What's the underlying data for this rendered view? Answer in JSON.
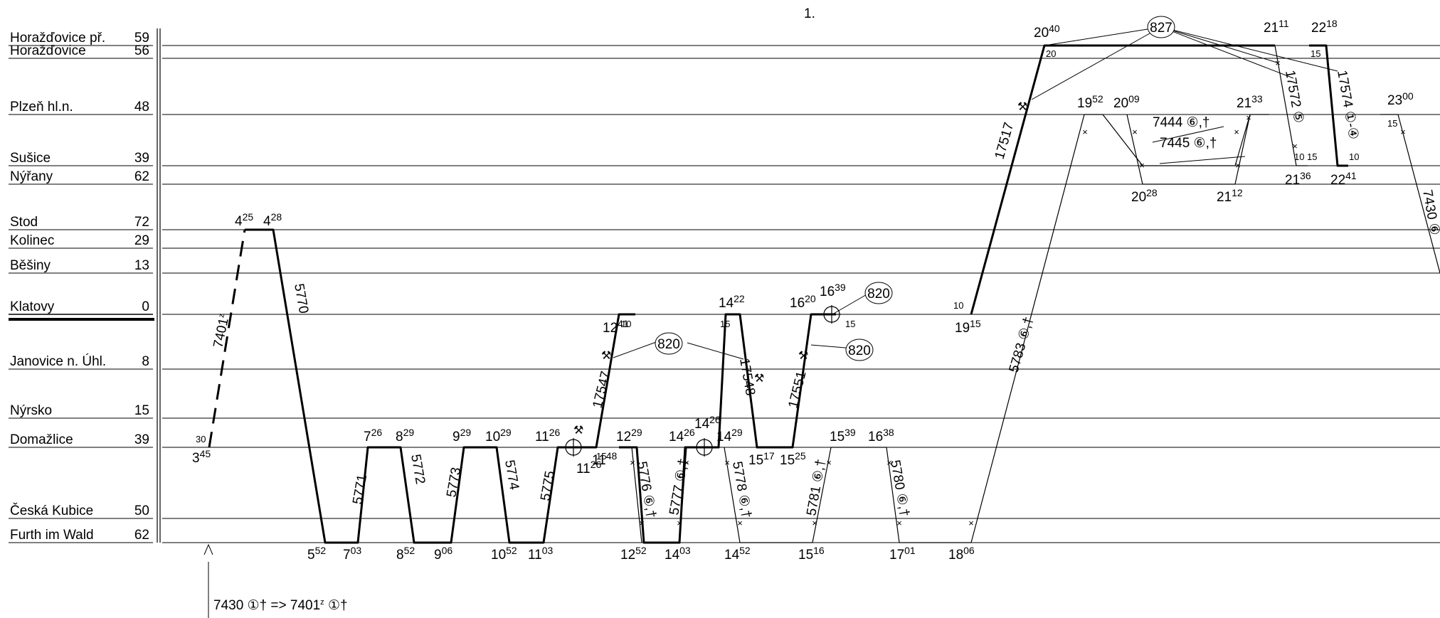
{
  "page_number": "1.",
  "stations": [
    {
      "name": "Horažďovice př.",
      "km": "59"
    },
    {
      "name": "Horažďovice",
      "km": "56"
    },
    {
      "name": "Plzeň hl.n.",
      "km": "48"
    },
    {
      "name": "Sušice",
      "km": "39"
    },
    {
      "name": "Nýřany",
      "km": "62"
    },
    {
      "name": "Stod",
      "km": "72"
    },
    {
      "name": "Kolinec",
      "km": "29"
    },
    {
      "name": "Běšiny",
      "km": "13"
    },
    {
      "name": "Klatovy",
      "km": "0"
    },
    {
      "name": "Janovice n. Úhl.",
      "km": "8"
    },
    {
      "name": "Nýrsko",
      "km": "15"
    },
    {
      "name": "Domažlice",
      "km": "39"
    },
    {
      "name": "Česká Kubice",
      "km": "50"
    },
    {
      "name": "Furth im Wald",
      "km": "62"
    }
  ],
  "times": [
    {
      "h": "3",
      "m": "45"
    },
    {
      "h": "4",
      "m": "25"
    },
    {
      "h": "4",
      "m": "28"
    },
    {
      "h": "5",
      "m": "52"
    },
    {
      "h": "7",
      "m": "03"
    },
    {
      "h": "7",
      "m": "26"
    },
    {
      "h": "8",
      "m": "29"
    },
    {
      "h": "8",
      "m": "52"
    },
    {
      "h": "9",
      "m": "06"
    },
    {
      "h": "9",
      "m": "29"
    },
    {
      "h": "10",
      "m": "29"
    },
    {
      "h": "10",
      "m": "52"
    },
    {
      "h": "11",
      "m": "03"
    },
    {
      "h": "11",
      "m": "26"
    },
    {
      "h": "11",
      "m": "26"
    },
    {
      "h": "11",
      "m": "48"
    },
    {
      "h": "12",
      "m": "41"
    },
    {
      "h": "12",
      "m": "29"
    },
    {
      "h": "12",
      "m": "52"
    },
    {
      "h": "14",
      "m": "03"
    },
    {
      "h": "14",
      "m": "26"
    },
    {
      "h": "14",
      "m": "26"
    },
    {
      "h": "14",
      "m": "29"
    },
    {
      "h": "14",
      "m": "22"
    },
    {
      "h": "14",
      "m": "52"
    },
    {
      "h": "15",
      "m": "17"
    },
    {
      "h": "15",
      "m": "25"
    },
    {
      "h": "15",
      "m": "16"
    },
    {
      "h": "15",
      "m": "39"
    },
    {
      "h": "16",
      "m": "38"
    },
    {
      "h": "16",
      "m": "20"
    },
    {
      "h": "16",
      "m": "39"
    },
    {
      "h": "17",
      "m": "01"
    },
    {
      "h": "18",
      "m": "06"
    },
    {
      "h": "19",
      "m": "15"
    },
    {
      "h": "20",
      "m": "40"
    },
    {
      "h": "19",
      "m": "52"
    },
    {
      "h": "20",
      "m": "09"
    },
    {
      "h": "20",
      "m": "28"
    },
    {
      "h": "21",
      "m": "12"
    },
    {
      "h": "21",
      "m": "33"
    },
    {
      "h": "21",
      "m": "11"
    },
    {
      "h": "21",
      "m": "36"
    },
    {
      "h": "22",
      "m": "18"
    },
    {
      "h": "22",
      "m": "41"
    },
    {
      "h": "23",
      "m": "00"
    }
  ],
  "minor_labels": [
    "30",
    "10",
    "15",
    "15",
    "10",
    "20",
    "15",
    "15",
    "15",
    "10",
    "10",
    "15"
  ],
  "trains": [
    {
      "number": "7401",
      "suffix": "z"
    },
    {
      "number": "5770"
    },
    {
      "number": "5771"
    },
    {
      "number": "5772"
    },
    {
      "number": "5773"
    },
    {
      "number": "5774"
    },
    {
      "number": "5775"
    },
    {
      "number": "17547"
    },
    {
      "number": "5776 ⑥,†"
    },
    {
      "number": "5777 ⑥,†"
    },
    {
      "number": "17548"
    },
    {
      "number": "5778 ⑥,†"
    },
    {
      "number": "5781 ⑥,†"
    },
    {
      "number": "17551"
    },
    {
      "number": "5780 ⑥,†"
    },
    {
      "number": "5783 ⑥,†"
    },
    {
      "number": "17517"
    },
    {
      "number": "7444 ⑥,†"
    },
    {
      "number": "7445 ⑥,†"
    },
    {
      "number": "17572 ⑤"
    },
    {
      "number": "17574 ①-④"
    },
    {
      "number": "7430 ⑥"
    }
  ],
  "circle_labels": [
    "820",
    "820",
    "820",
    "827"
  ],
  "tool_symbol": "⚒",
  "note": {
    "prefix": "7430 ①† => 7401",
    "sup": "z",
    "suffix": " ①†"
  }
}
